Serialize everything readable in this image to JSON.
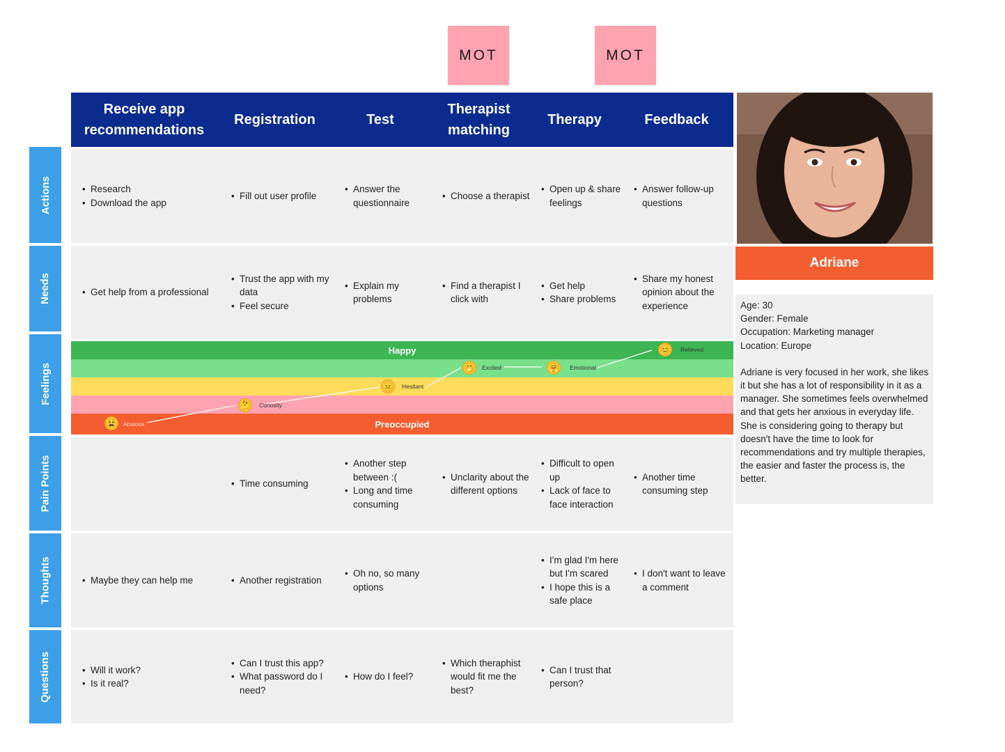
{
  "mot_labels": [
    "MOT",
    "MOT"
  ],
  "stages": [
    "Receive app\nrecommendations",
    "Registration",
    "Test",
    "Therapist\nmatching",
    "Therapy",
    "Feedback"
  ],
  "rows": [
    {
      "label": "Actions",
      "cells": [
        [
          "Research",
          "Download the app"
        ],
        [
          "Fill out user profile"
        ],
        [
          "Answer the questionnaire"
        ],
        [
          "Choose a therapist"
        ],
        [
          "Open up & share feelings"
        ],
        [
          "Answer follow-up questions"
        ]
      ]
    },
    {
      "label": "Needs",
      "cells": [
        [
          "Get help from a professional"
        ],
        [
          "Trust the app with my data",
          "Feel secure"
        ],
        [
          "Explain my problems"
        ],
        [
          "Find a therapist I click with"
        ],
        [
          "Get help",
          "Share problems"
        ],
        [
          "Share my honest opinion about the experience"
        ]
      ]
    },
    {
      "label": "Pain Points",
      "cells": [
        [],
        [
          "Time consuming"
        ],
        [
          "Another step between :(",
          "Long and time consuming"
        ],
        [
          "Unclarity about the different options"
        ],
        [
          "Difficult to open up",
          "Lack of face to face interaction"
        ],
        [
          "Another time consuming step"
        ]
      ]
    },
    {
      "label": "Thoughts",
      "cells": [
        [
          "Maybe they can help me"
        ],
        [
          "Another registration"
        ],
        [
          "Oh no, so many options"
        ],
        [],
        [
          "I'm glad I'm here but I'm scared",
          "I hope this is a safe place"
        ],
        [
          "I don't want to leave a comment"
        ]
      ]
    },
    {
      "label": "Questions",
      "cells": [
        [
          "Will it work?",
          "Is it real?"
        ],
        [
          "Can I trust this app?",
          "What password do I need?"
        ],
        [
          "How do I feel?"
        ],
        [
          "Which theraphist would fit me the best?"
        ],
        [
          "Can I trust that person?"
        ],
        []
      ]
    }
  ],
  "feelings": {
    "label": "Feelings",
    "top_band": "Happy",
    "bottom_band": "Preoccupied",
    "band_colors": [
      "#3cb552",
      "#7adf8b",
      "#ffdb5c",
      "#ffa3b1",
      "#f45d2f"
    ],
    "points": [
      {
        "label": "Anxious",
        "icon": "tired-face-icon",
        "glyph": "😫"
      },
      {
        "label": "Curiosity",
        "icon": "thinking-face-icon",
        "glyph": "🤔"
      },
      {
        "label": "Hesitant",
        "icon": "neutral-face-icon",
        "glyph": "😐"
      },
      {
        "label": "Excited",
        "icon": "hand-over-mouth-face-icon",
        "glyph": "🤭"
      },
      {
        "label": "Emotional",
        "icon": "hugging-face-icon",
        "glyph": "🤗"
      },
      {
        "label": "Relieved",
        "icon": "smiling-face-icon",
        "glyph": "😊"
      }
    ]
  },
  "persona": {
    "photo_icon": "persona-photo-icon",
    "name": "Adriane",
    "age": "Age: 30",
    "gender": "Gender: Female",
    "occupation": "Occupation: Marketing manager",
    "location": "Location: Europe",
    "bio": "Adriane is very focused in her work, she likes it but she has a lot of responsibility in it as a manager. She sometimes feels overwhelmed and that gets her anxious in everyday life. She is considering going to therapy but doesn't have the time to look for recommendations and try multiple therapies, the easier and faster the process is, the better."
  }
}
